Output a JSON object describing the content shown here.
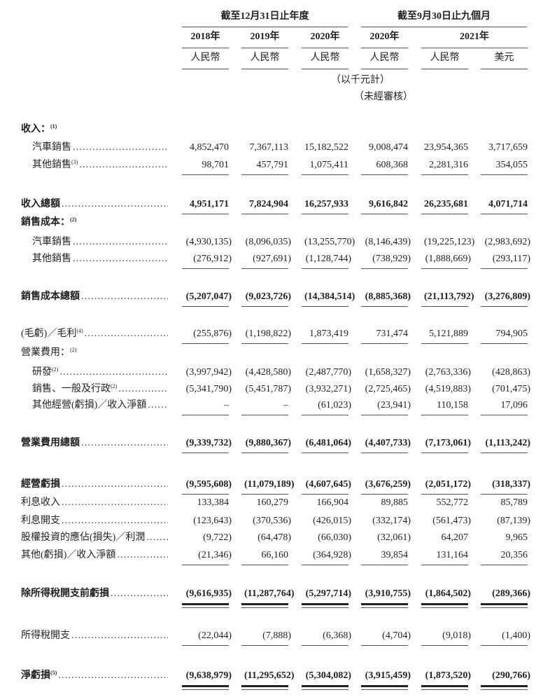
{
  "header": {
    "group_annual": "截至12月31日止年度",
    "group_nine_months": "截至9月30日止九個月",
    "years": [
      "2018年",
      "2019年",
      "2020年",
      "2020年",
      "2021年"
    ],
    "currencies": [
      "人民幣",
      "人民幣",
      "人民幣",
      "人民幣",
      "人民幣",
      "美元"
    ],
    "unit_note": "（以千元計）",
    "unaudited_note": "（未經審核）"
  },
  "rows": [
    {
      "label": "收入：",
      "note": "(1)",
      "values": []
    },
    {
      "label": "汽車銷售",
      "note": "",
      "values": [
        "4,852,470",
        "7,367,113",
        "15,182,522",
        "9,008,474",
        "23,954,365",
        "3,717,659"
      ]
    },
    {
      "label": "其他銷售",
      "note": "(3)",
      "values": [
        "98,701",
        "457,791",
        "1,075,411",
        "608,368",
        "2,281,316",
        "354,055"
      ]
    },
    {
      "label": "收入總額",
      "note": "",
      "values": [
        "4,951,171",
        "7,824,904",
        "16,257,933",
        "9,616,842",
        "26,235,681",
        "4,071,714"
      ]
    },
    {
      "label": "銷售成本：",
      "note": "(2)",
      "values": []
    },
    {
      "label": "汽車銷售",
      "note": "",
      "values": [
        "(4,930,135)",
        "(8,096,035)",
        "(13,255,770)",
        "(8,146,439)",
        "(19,225,123)",
        "(2,983,692)"
      ]
    },
    {
      "label": "其他銷售",
      "note": "",
      "values": [
        "(276,912)",
        "(927,691)",
        "(1,128,744)",
        "(738,929)",
        "(1,888,669)",
        "(293,117)"
      ]
    },
    {
      "label": "銷售成本總額",
      "note": "",
      "values": [
        "(5,207,047)",
        "(9,023,726)",
        "(14,384,514)",
        "(8,885,368)",
        "(21,113,792)",
        "(3,276,809)"
      ]
    },
    {
      "label": "(毛虧)／毛利",
      "note": "(4)",
      "values": [
        "(255,876)",
        "(1,198,822)",
        "1,873,419",
        "731,474",
        "5,121,889",
        "794,905"
      ]
    },
    {
      "label": "營業費用：",
      "note": "(2)",
      "values": []
    },
    {
      "label": "研發",
      "note": "(2)",
      "values": [
        "(3,997,942)",
        "(4,428,580)",
        "(2,487,770)",
        "(1,658,327)",
        "(2,763,336)",
        "(428,863)"
      ]
    },
    {
      "label": "銷售、一般及行政",
      "note": "(2)",
      "values": [
        "(5,341,790)",
        "(5,451,787)",
        "(3,932,271)",
        "(2,725,465)",
        "(4,519,883)",
        "(701,475)"
      ]
    },
    {
      "label": "其他經營(虧損)／收入淨額",
      "note": "",
      "values": [
        "–",
        "–",
        "(61,023)",
        "(23,941)",
        "110,158",
        "17,096"
      ]
    },
    {
      "label": "營業費用總額",
      "note": "",
      "values": [
        "(9,339,732)",
        "(9,880,367)",
        "(6,481,064)",
        "(4,407,733)",
        "(7,173,061)",
        "(1,113,242)"
      ]
    },
    {
      "label": "經營虧損",
      "note": "",
      "values": [
        "(9,595,608)",
        "(11,079,189)",
        "(4,607,645)",
        "(3,676,259)",
        "(2,051,172)",
        "(318,337)"
      ]
    },
    {
      "label": "利息收入",
      "note": "",
      "values": [
        "133,384",
        "160,279",
        "166,904",
        "89,885",
        "552,772",
        "85,789"
      ]
    },
    {
      "label": "利息開支",
      "note": "",
      "values": [
        "(123,643)",
        "(370,536)",
        "(426,015)",
        "(332,174)",
        "(561,473)",
        "(87,139)"
      ]
    },
    {
      "label": "股權投資的應佔(損失)／利潤",
      "note": "",
      "values": [
        "(9,722)",
        "(64,478)",
        "(66,030)",
        "(32,061)",
        "64,207",
        "9,965"
      ]
    },
    {
      "label": "其他(虧損)／收入淨額",
      "note": "",
      "values": [
        "(21,346)",
        "66,160",
        "(364,928)",
        "39,854",
        "131,164",
        "20,356"
      ]
    },
    {
      "label": "除所得稅開支前虧損",
      "note": "",
      "values": [
        "(9,616,935)",
        "(11,287,764)",
        "(5,297,714)",
        "(3,910,755)",
        "(1,864,502)",
        "(289,366)"
      ]
    },
    {
      "label": "所得稅開支",
      "note": "",
      "values": [
        "(22,044)",
        "(7,888)",
        "(6,368)",
        "(4,704)",
        "(9,018)",
        "(1,400)"
      ]
    },
    {
      "label": "淨虧損",
      "note": "(5)",
      "values": [
        "(9,638,979)",
        "(11,295,652)",
        "(5,304,082)",
        "(3,915,459)",
        "(1,873,520)",
        "(290,766)"
      ]
    }
  ]
}
